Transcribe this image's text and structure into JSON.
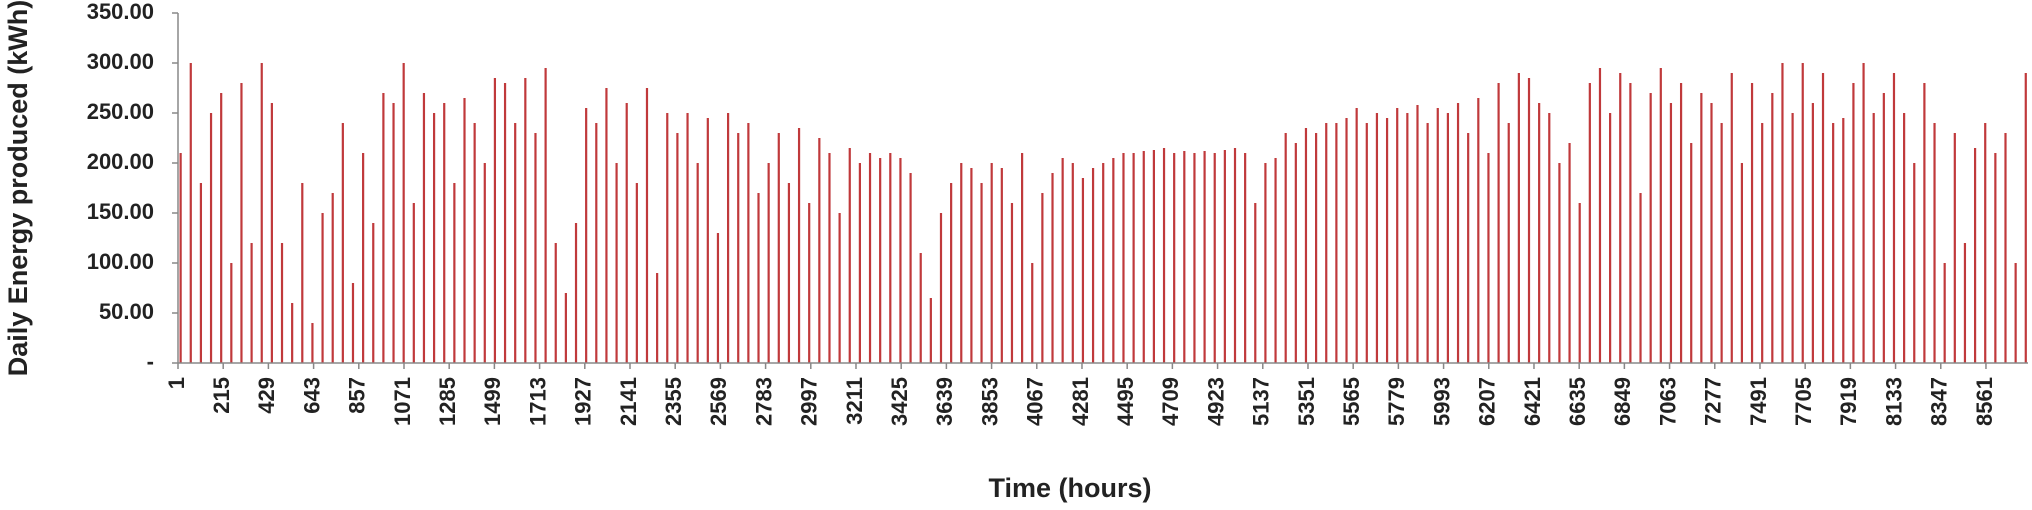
{
  "chart_data": {
    "type": "bar",
    "x_label": "Time (hours)",
    "y_label": "Daily Energy produced (kWh)",
    "color": "#c0393b",
    "x": [
      13,
      61,
      109,
      157,
      205,
      253,
      301,
      349,
      397,
      445,
      493,
      541,
      589,
      637,
      685,
      733,
      781,
      829,
      877,
      925,
      973,
      1021,
      1069,
      1117,
      1165,
      1213,
      1261,
      1309,
      1357,
      1405,
      1453,
      1501,
      1549,
      1597,
      1645,
      1693,
      1741,
      1789,
      1837,
      1885,
      1933,
      1981,
      2029,
      2077,
      2125,
      2173,
      2221,
      2269,
      2317,
      2365,
      2413,
      2461,
      2509,
      2557,
      2605,
      2653,
      2701,
      2749,
      2797,
      2845,
      2893,
      2941,
      2989,
      3037,
      3085,
      3133,
      3181,
      3229,
      3277,
      3325,
      3373,
      3421,
      3469,
      3517,
      3565,
      3613,
      3661,
      3709,
      3757,
      3805,
      3853,
      3901,
      3949,
      3997,
      4045,
      4093,
      4141,
      4189,
      4237,
      4285,
      4333,
      4381,
      4429,
      4477,
      4525,
      4573,
      4621,
      4669,
      4717,
      4765,
      4813,
      4861,
      4909,
      4957,
      5005,
      5053,
      5101,
      5149,
      5197,
      5245,
      5293,
      5341,
      5389,
      5437,
      5485,
      5533,
      5581,
      5629,
      5677,
      5725,
      5773,
      5821,
      5869,
      5917,
      5965,
      6013,
      6061,
      6109,
      6157,
      6205,
      6253,
      6301,
      6349,
      6397,
      6445,
      6493,
      6541,
      6589,
      6637,
      6685,
      6733,
      6781,
      6829,
      6877,
      6925,
      6973,
      7021,
      7069,
      7117,
      7165,
      7213,
      7261,
      7309,
      7357,
      7405,
      7453,
      7501,
      7549,
      7597,
      7645,
      7693,
      7741,
      7789,
      7837,
      7885,
      7933,
      7981,
      8029,
      8077,
      8125,
      8173,
      8221,
      8269,
      8317,
      8365,
      8413,
      8461,
      8509,
      8557,
      8605,
      8653,
      8701,
      8749
    ],
    "values": [
      210,
      300,
      180,
      250,
      270,
      100,
      280,
      120,
      300,
      260,
      120,
      60,
      180,
      40,
      150,
      170,
      240,
      80,
      210,
      140,
      270,
      260,
      300,
      160,
      270,
      250,
      260,
      180,
      265,
      240,
      200,
      285,
      280,
      240,
      285,
      230,
      295,
      120,
      70,
      140,
      255,
      240,
      275,
      200,
      260,
      180,
      275,
      90,
      250,
      230,
      250,
      200,
      245,
      130,
      250,
      230,
      240,
      170,
      200,
      230,
      180,
      235,
      160,
      225,
      210,
      150,
      215,
      200,
      210,
      205,
      210,
      205,
      190,
      110,
      65,
      150,
      180,
      200,
      195,
      180,
      200,
      195,
      160,
      210,
      100,
      170,
      190,
      205,
      200,
      185,
      195,
      200,
      205,
      210,
      210,
      212,
      213,
      215,
      210,
      212,
      210,
      212,
      210,
      213,
      215,
      210,
      160,
      200,
      205,
      230,
      220,
      235,
      230,
      240,
      240,
      245,
      255,
      240,
      250,
      245,
      255,
      250,
      258,
      240,
      255,
      250,
      260,
      230,
      265,
      210,
      280,
      240,
      290,
      285,
      260,
      250,
      200,
      220,
      160,
      280,
      295,
      250,
      290,
      280,
      170,
      270,
      295,
      260,
      280,
      220,
      270,
      260,
      240,
      290,
      200,
      280,
      240,
      270,
      300,
      250,
      300,
      260,
      290,
      240,
      245,
      280,
      300,
      250,
      270,
      290,
      250,
      200,
      280,
      240,
      100,
      230,
      120,
      215,
      240,
      210,
      230,
      100,
      290
    ],
    "xlim": [
      1,
      8760
    ],
    "xticks": [
      1,
      215,
      429,
      643,
      857,
      1071,
      1285,
      1499,
      1713,
      1927,
      2141,
      2355,
      2569,
      2783,
      2997,
      3211,
      3425,
      3639,
      3853,
      4067,
      4281,
      4495,
      4709,
      4923,
      5137,
      5351,
      5565,
      5779,
      5993,
      6207,
      6421,
      6635,
      6849,
      7063,
      7277,
      7491,
      7705,
      7919,
      8133,
      8347,
      8561
    ],
    "ylim": [
      0,
      350
    ],
    "yticks": [
      {
        "value": 0,
        "label": "-"
      },
      {
        "value": 50,
        "label": "50.00"
      },
      {
        "value": 100,
        "label": "100.00"
      },
      {
        "value": 150,
        "label": "150.00"
      },
      {
        "value": 200,
        "label": "200.00"
      },
      {
        "value": 250,
        "label": "250.00"
      },
      {
        "value": 300,
        "label": "300.00"
      },
      {
        "value": 350,
        "label": "350.00"
      }
    ]
  }
}
